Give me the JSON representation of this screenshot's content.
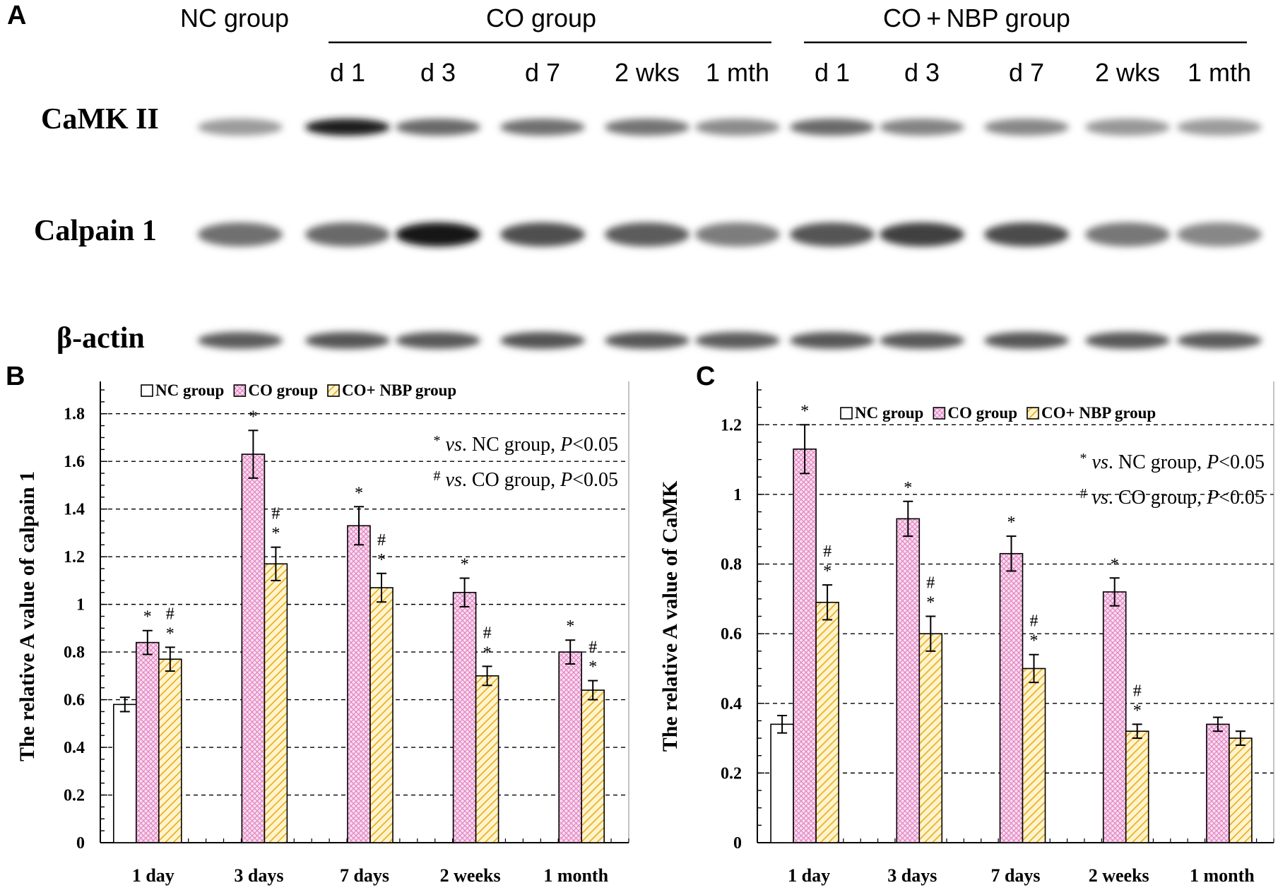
{
  "panels": {
    "a": "A",
    "b": "B",
    "c": "C"
  },
  "western_blot": {
    "headers": {
      "nc": "NC group",
      "co": "CO group",
      "conbp": "CO + NBP group"
    },
    "lanes_co": [
      "d 1",
      "d 3",
      "d 7",
      "2 wks",
      "1 mth"
    ],
    "lanes_conbp": [
      "d 1",
      "d 3",
      "d 7",
      "2 wks",
      "1 mth"
    ],
    "proteins": [
      "CaMK II",
      "Calpain 1",
      "β-actin"
    ],
    "band_intensity": [
      [
        0.3,
        0.92,
        0.55,
        0.52,
        0.5,
        0.38,
        0.55,
        0.42,
        0.4,
        0.32,
        0.3
      ],
      [
        0.52,
        0.55,
        0.98,
        0.68,
        0.62,
        0.45,
        0.65,
        0.75,
        0.7,
        0.48,
        0.4
      ],
      [
        0.62,
        0.65,
        0.63,
        0.66,
        0.64,
        0.62,
        0.64,
        0.63,
        0.64,
        0.63,
        0.62
      ]
    ]
  },
  "colors": {
    "nc": "#ffffff",
    "co": "#ee9ed2",
    "conbp": "#f2c020"
  },
  "chart_data": [
    {
      "type": "bar",
      "panel": "B",
      "ylabel": "The relative A  value of calpain 1",
      "ylim": [
        0,
        1.9
      ],
      "yticks": [
        "0",
        "0.2",
        "0.4",
        "0.6",
        "0.8",
        "1",
        "1.2",
        "1.4",
        "1.6",
        "1.8"
      ],
      "grid": true,
      "legend_position": "top",
      "categories": [
        "1 day",
        "3 days",
        "7 days",
        "2 weeks",
        "1 month"
      ],
      "series": [
        {
          "name": "NC group",
          "values": [
            0.58,
            null,
            null,
            null,
            null
          ],
          "errors": [
            0.03,
            null,
            null,
            null,
            null
          ],
          "sig": [
            "",
            null,
            null,
            null,
            null
          ]
        },
        {
          "name": "CO group",
          "values": [
            0.84,
            1.63,
            1.33,
            1.05,
            0.8
          ],
          "errors": [
            0.05,
            0.1,
            0.08,
            0.06,
            0.05
          ],
          "sig": [
            "*",
            "*",
            "*",
            "*",
            "*"
          ]
        },
        {
          "name": "CO+ NBP group",
          "values": [
            0.77,
            1.17,
            1.07,
            0.7,
            0.64
          ],
          "errors": [
            0.05,
            0.07,
            0.06,
            0.04,
            0.04
          ],
          "sig": [
            "#*",
            "#*",
            "#*",
            "#*",
            "#*"
          ]
        }
      ],
      "notes": [
        {
          "symbol": "*",
          "vs": "vs",
          "mid": ". NC group, ",
          "p": "P",
          "rest": "<0.05"
        },
        {
          "symbol": "#",
          "vs": "vs",
          "mid": ". CO group, ",
          "p": "P",
          "rest": "<0.05"
        }
      ]
    },
    {
      "type": "bar",
      "panel": "C",
      "ylabel": "The relative A  value of CaMK",
      "ylim": [
        0,
        1.3
      ],
      "yticks": [
        "0",
        "0.2",
        "0.4",
        "0.6",
        "0.8",
        "1",
        "1.2"
      ],
      "grid": true,
      "legend_position": "top-right",
      "categories": [
        "1 day",
        "3 days",
        "7 days",
        "2 weeks",
        "1 month"
      ],
      "series": [
        {
          "name": "NC group",
          "values": [
            0.34,
            null,
            null,
            null,
            null
          ],
          "errors": [
            0.025,
            null,
            null,
            null,
            null
          ],
          "sig": [
            "",
            null,
            null,
            null,
            null
          ]
        },
        {
          "name": "CO group",
          "values": [
            1.13,
            0.93,
            0.83,
            0.72,
            0.34
          ],
          "errors": [
            0.07,
            0.05,
            0.05,
            0.04,
            0.02
          ],
          "sig": [
            "*",
            "*",
            "*",
            "*",
            ""
          ]
        },
        {
          "name": "CO+ NBP group",
          "values": [
            0.69,
            0.6,
            0.5,
            0.32,
            0.3
          ],
          "errors": [
            0.05,
            0.05,
            0.04,
            0.02,
            0.02
          ],
          "sig": [
            "#*",
            "#*",
            "#*",
            "#*",
            ""
          ]
        }
      ],
      "notes": [
        {
          "symbol": "*",
          "vs": "vs",
          "mid": ". NC group, ",
          "p": "P",
          "rest": "<0.05"
        },
        {
          "symbol": "#",
          "vs": "vs",
          "mid": ". CO group, ",
          "p": "P",
          "rest": "<0.05"
        }
      ]
    }
  ]
}
